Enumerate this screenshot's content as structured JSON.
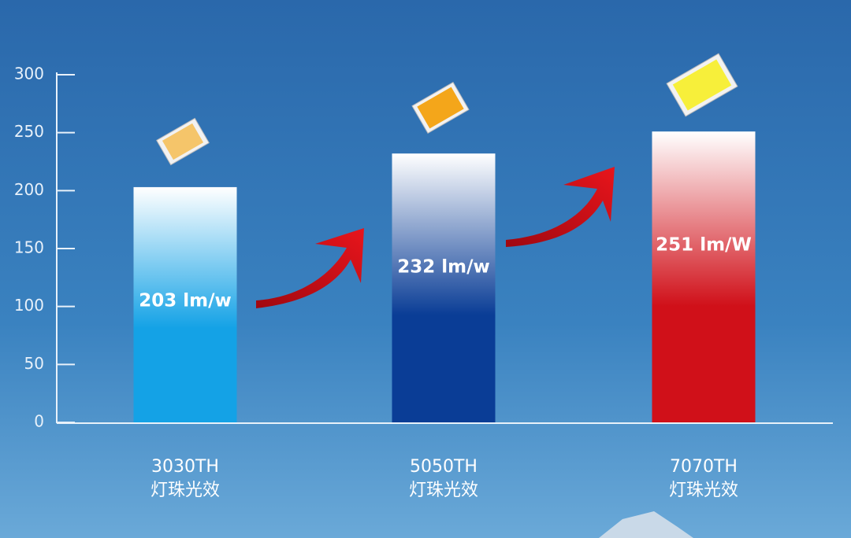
{
  "chart_data": {
    "type": "bar",
    "categories": [
      "3030TH",
      "5050TH",
      "7070TH"
    ],
    "category_notes": [
      "灯珠光效",
      "灯珠光效",
      "灯珠光效"
    ],
    "values": [
      203,
      232,
      251
    ],
    "value_labels": [
      "203 lm/w",
      "232 lm/w",
      "251 lm/W"
    ],
    "colors": [
      "#14a2e6",
      "#0a3d96",
      "#d01019"
    ],
    "ylim": [
      0,
      300
    ],
    "yticks": [
      0,
      50,
      100,
      150,
      200,
      250,
      300
    ]
  }
}
